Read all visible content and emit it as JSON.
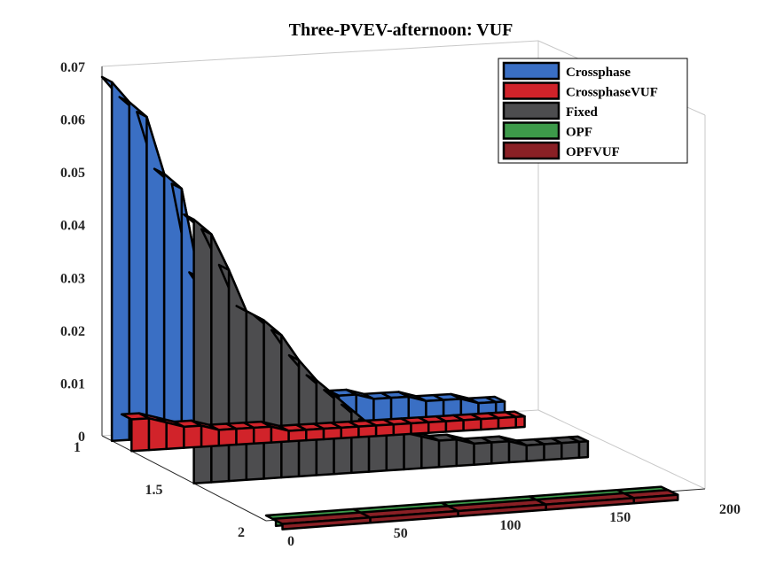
{
  "chart_data": {
    "type": "area",
    "view": "3d-ribbon",
    "title": "Three-PVEV-afternoon: VUF",
    "xlabel": "",
    "ylabel": "",
    "zlabel": "",
    "xlim": [
      0,
      200
    ],
    "ylim": [
      1,
      2
    ],
    "zlim": [
      0,
      0.07
    ],
    "x_ticks": [
      "0",
      "50",
      "100",
      "150",
      "200"
    ],
    "y_ticks": [
      "1",
      "1.5",
      "2"
    ],
    "z_ticks": [
      "0",
      "0.01",
      "0.02",
      "0.03",
      "0.04",
      "0.05",
      "0.06",
      "0.07"
    ],
    "grid": false,
    "legend_position": "top-right",
    "series": [
      {
        "name": "Crossphase",
        "color": "#3a6fc4",
        "y": 1.0,
        "x": [
          0,
          8,
          16,
          24,
          32,
          40,
          48,
          56,
          64,
          72,
          80,
          88,
          96,
          104,
          112,
          120,
          128,
          136,
          144,
          152,
          160,
          168,
          176,
          180
        ],
        "values": [
          0.068,
          0.064,
          0.061,
          0.05,
          0.047,
          0.03,
          0.025,
          0.021,
          0.018,
          0.012,
          0.01,
          0.008,
          0.007,
          0.006,
          0.006,
          0.005,
          0.005,
          0.005,
          0.004,
          0.004,
          0.004,
          0.003,
          0.003,
          0.003
        ]
      },
      {
        "name": "CrossphaseVUF",
        "color": "#d1232a",
        "y": 1.0,
        "x": [
          0,
          8,
          16,
          24,
          32,
          40,
          48,
          56,
          64,
          72,
          80,
          88,
          96,
          104,
          112,
          120,
          128,
          136,
          144,
          152,
          160,
          168,
          176,
          180
        ],
        "values": [
          0.006,
          0.006,
          0.005,
          0.004,
          0.004,
          0.003,
          0.003,
          0.003,
          0.003,
          0.002,
          0.002,
          0.002,
          0.002,
          0.002,
          0.002,
          0.002,
          0.002,
          0.002,
          0.002,
          0.002,
          0.002,
          0.002,
          0.002,
          0.002
        ]
      },
      {
        "name": "Fixed",
        "color": "#4d4d4f",
        "y": 1.5,
        "x": [
          0,
          8,
          16,
          24,
          32,
          40,
          48,
          56,
          64,
          72,
          80,
          88,
          96,
          104,
          112,
          120,
          128,
          136,
          144,
          152,
          160,
          168,
          176,
          180
        ],
        "values": [
          0.05,
          0.047,
          0.04,
          0.032,
          0.03,
          0.027,
          0.022,
          0.018,
          0.015,
          0.012,
          0.009,
          0.008,
          0.007,
          0.006,
          0.005,
          0.005,
          0.004,
          0.004,
          0.004,
          0.003,
          0.003,
          0.003,
          0.003,
          0.003
        ]
      },
      {
        "name": "OPF",
        "color": "#3d9a4a",
        "y": 2.0,
        "x": [
          0,
          40,
          80,
          120,
          160,
          180
        ],
        "values": [
          0.001,
          0.001,
          0.001,
          0.001,
          0.001,
          0.001
        ]
      },
      {
        "name": "OPFVUF",
        "color": "#8a2025",
        "y": 2.0,
        "x": [
          0,
          40,
          80,
          120,
          160,
          180
        ],
        "values": [
          0.001,
          0.001,
          0.001,
          0.001,
          0.001,
          0.001
        ]
      }
    ]
  }
}
